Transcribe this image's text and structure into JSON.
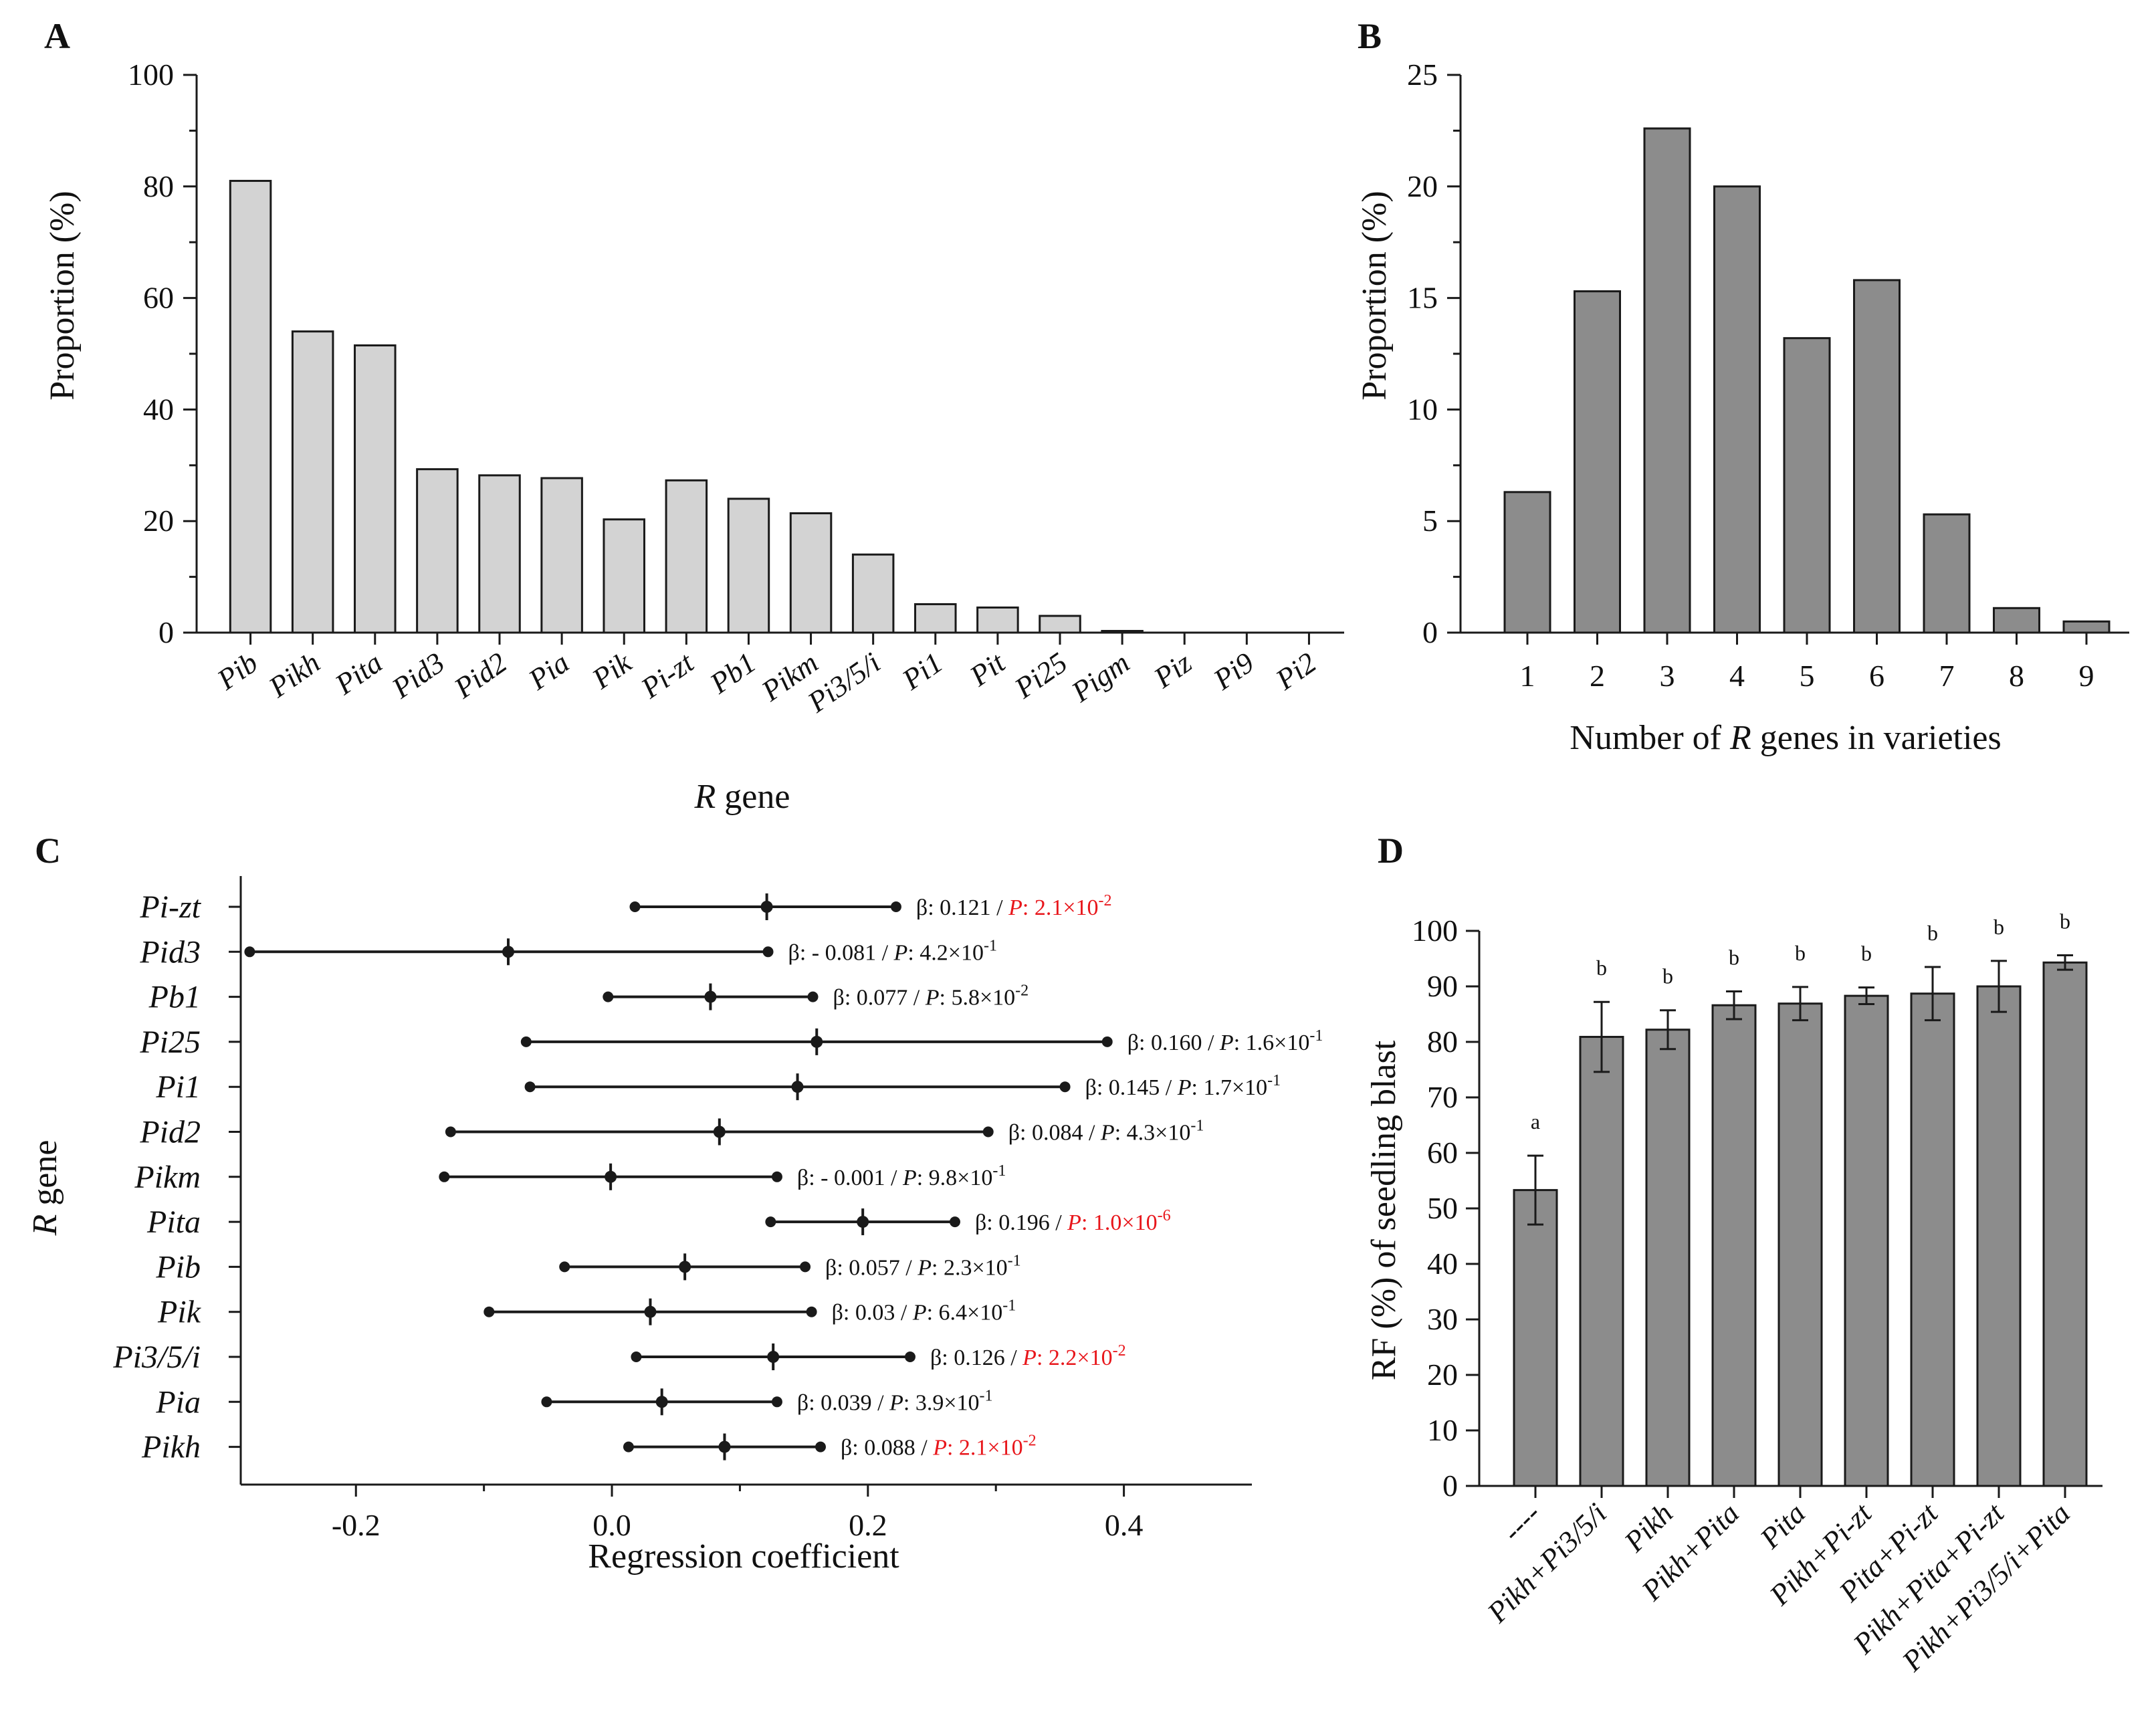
{
  "panels": {
    "A": {
      "label": "A",
      "chart_data": {
        "type": "bar",
        "xlabel_italic": "R",
        "xlabel_rest": " gene",
        "ylabel": "Proportion (%)",
        "ylim": [
          0,
          100
        ],
        "yticks": [
          "0",
          "20",
          "40",
          "60",
          "80",
          "100"
        ],
        "categories": [
          "Pib",
          "Pikh",
          "Pita",
          "Pid3",
          "Pid2",
          "Pia",
          "Pik",
          "Pi-zt",
          "Pb1",
          "Pikm",
          "Pi3/5/i",
          "Pi1",
          "Pit",
          "Pi25",
          "Pigm",
          "Piz",
          "Pi9",
          "Pi2"
        ],
        "values": [
          81.0,
          54.0,
          51.5,
          29.3,
          28.2,
          27.7,
          20.3,
          27.3,
          24.0,
          21.4,
          14.0,
          5.1,
          4.5,
          3.0,
          0.3,
          0,
          0,
          0
        ],
        "bar_color": "#d3d3d3"
      }
    },
    "B": {
      "label": "B",
      "chart_data": {
        "type": "bar",
        "xlabel_pre": "Number of ",
        "xlabel_italic": "R",
        "xlabel_post": " genes in varieties",
        "ylabel": "Proportion (%)",
        "ylim": [
          0,
          25
        ],
        "yticks": [
          "0",
          "5",
          "10",
          "15",
          "20",
          "25"
        ],
        "categories": [
          "1",
          "2",
          "3",
          "4",
          "5",
          "6",
          "7",
          "8",
          "9"
        ],
        "values": [
          6.3,
          15.3,
          22.6,
          20.0,
          13.2,
          15.8,
          5.3,
          1.1,
          0.5
        ],
        "bar_color": "#8c8c8c"
      }
    },
    "C": {
      "label": "C",
      "chart_data": {
        "type": "scatter",
        "xlabel": "Regression coefficient",
        "ylabel_italic": "R",
        "ylabel_rest": " gene",
        "xlim": [
          -0.29,
          0.5
        ],
        "xticks": [
          "-0.2",
          "0.0",
          "0.2",
          "0.4"
        ],
        "xtick_values": [
          -0.2,
          0.0,
          0.2,
          0.4
        ],
        "rows": [
          {
            "gene": "Pi-zt",
            "beta": 0.121,
            "low": 0.018,
            "high": 0.222,
            "beta_text": "β: 0.121 / ",
            "p_label": "P",
            "p_value": ": 2.1×10",
            "p_exp": "-2",
            "significant": true
          },
          {
            "gene": "Pid3",
            "beta": -0.081,
            "low": -0.283,
            "high": 0.122,
            "beta_text": "β: - 0.081 / ",
            "p_label": "P",
            "p_value": ": 4.2×10",
            "p_exp": "-1",
            "significant": false
          },
          {
            "gene": "Pb1",
            "beta": 0.077,
            "low": -0.003,
            "high": 0.157,
            "beta_text": "β: 0.077 / ",
            "p_label": "P",
            "p_value": ": 5.8×10",
            "p_exp": "-2",
            "significant": false
          },
          {
            "gene": "Pi25",
            "beta": 0.16,
            "low": -0.067,
            "high": 0.387,
            "beta_text": "β: 0.160 / ",
            "p_label": "P",
            "p_value": ": 1.6×10",
            "p_exp": "-1",
            "significant": false
          },
          {
            "gene": "Pi1",
            "beta": 0.145,
            "low": -0.064,
            "high": 0.354,
            "beta_text": "β: 0.145 / ",
            "p_label": "P",
            "p_value": ": 1.7×10",
            "p_exp": "-1",
            "significant": false
          },
          {
            "gene": "Pid2",
            "beta": 0.084,
            "low": -0.126,
            "high": 0.294,
            "beta_text": "β: 0.084 / ",
            "p_label": "P",
            "p_value": ": 4.3×10",
            "p_exp": "-1",
            "significant": false
          },
          {
            "gene": "Pikm",
            "beta": -0.001,
            "low": -0.131,
            "high": 0.129,
            "beta_text": "β: - 0.001 / ",
            "p_label": "P",
            "p_value": ": 9.8×10",
            "p_exp": "-1",
            "significant": false
          },
          {
            "gene": "Pita",
            "beta": 0.196,
            "low": 0.124,
            "high": 0.268,
            "beta_text": "β: 0.196 / ",
            "p_label": "P",
            "p_value": ": 1.0×10",
            "p_exp": "-6",
            "significant": true
          },
          {
            "gene": "Pib",
            "beta": 0.057,
            "low": -0.037,
            "high": 0.151,
            "beta_text": "β: 0.057 / ",
            "p_label": "P",
            "p_value": ": 2.3×10",
            "p_exp": "-1",
            "significant": false
          },
          {
            "gene": "Pik",
            "beta": 0.03,
            "low": -0.096,
            "high": 0.156,
            "beta_text": "β: 0.03 / ",
            "p_label": "P",
            "p_value": ": 6.4×10",
            "p_exp": "-1",
            "significant": false
          },
          {
            "gene": "Pi3/5/i",
            "beta": 0.126,
            "low": 0.019,
            "high": 0.233,
            "beta_text": "β: 0.126 / ",
            "p_label": "P",
            "p_value": ": 2.2×10",
            "p_exp": "-2",
            "significant": true
          },
          {
            "gene": "Pia",
            "beta": 0.039,
            "low": -0.051,
            "high": 0.129,
            "beta_text": "β: 0.039 / ",
            "p_label": "P",
            "p_value": ": 3.9×10",
            "p_exp": "-1",
            "significant": false
          },
          {
            "gene": "Pikh",
            "beta": 0.088,
            "low": 0.013,
            "high": 0.163,
            "beta_text": "β: 0.088 / ",
            "p_label": "P",
            "p_value": ": 2.1×10",
            "p_exp": "-2",
            "significant": true
          }
        ],
        "sig_color": "#e8161b"
      }
    },
    "D": {
      "label": "D",
      "chart_data": {
        "type": "bar",
        "ylabel": "RF (%) of seedling blast",
        "ylim": [
          0,
          100
        ],
        "yticks": [
          "0",
          "10",
          "20",
          "30",
          "40",
          "50",
          "60",
          "70",
          "80",
          "90",
          "100"
        ],
        "categories": [
          "----",
          "Pikh+Pi3/5/i",
          "Pikh",
          "Pikh+Pita",
          "Pita",
          "Pikh+Pi-zt",
          "Pita+Pi-zt",
          "Pikh+Pita+Pi-zt",
          "Pikh+Pi3/5/i+Pita"
        ],
        "values": [
          53.3,
          80.9,
          82.2,
          86.6,
          86.9,
          88.3,
          88.7,
          90.0,
          94.3
        ],
        "errors": [
          6.2,
          6.3,
          3.5,
          2.5,
          3.0,
          1.5,
          4.8,
          4.6,
          1.3
        ],
        "letters": [
          "a",
          "b",
          "b",
          "b",
          "b",
          "b",
          "b",
          "b",
          "b"
        ],
        "bar_color": "#8c8c8c"
      }
    }
  }
}
